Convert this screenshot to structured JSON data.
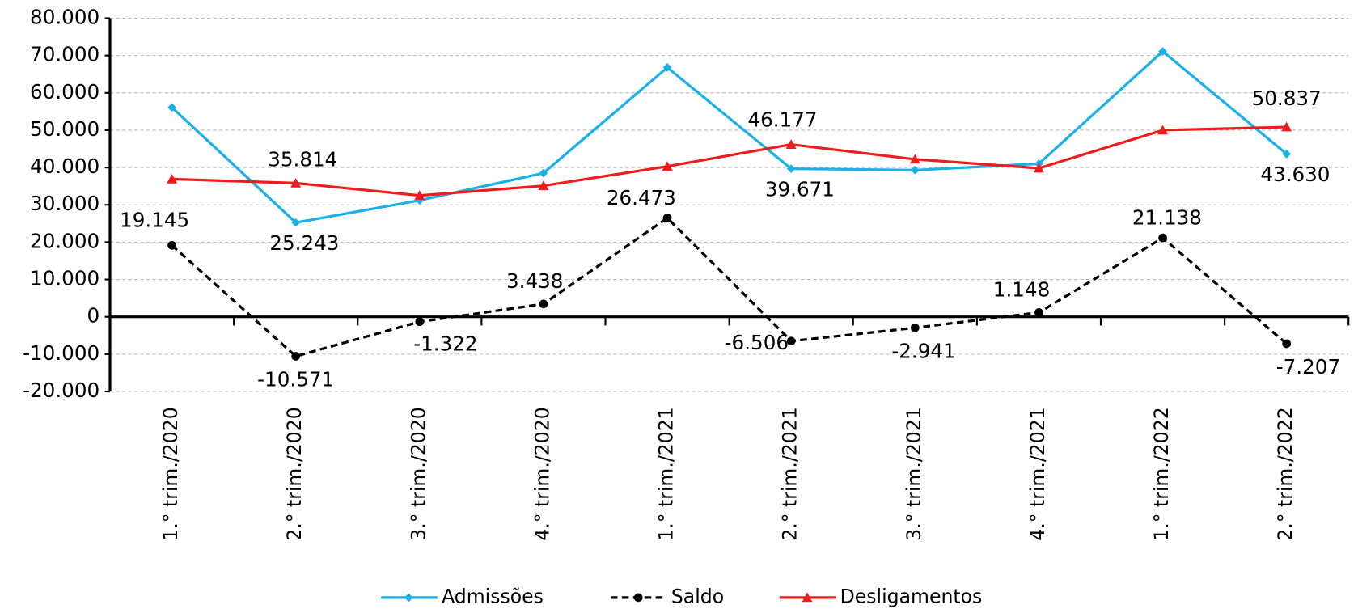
{
  "chart_data": {
    "type": "line",
    "categories": [
      "1.° trim./2020",
      "2.° trim./2020",
      "3.° trim./2020",
      "4.° trim./2020",
      "1.° trim./2021",
      "2.° trim./2021",
      "3.° trim./2021",
      "4.° trim./2021",
      "1.° trim./2022",
      "2.° trim./2022"
    ],
    "series": [
      {
        "name": "Admissões",
        "color": "#1ab0e8",
        "marker": "diamond",
        "dashed": false,
        "values": [
          56100,
          25243,
          31200,
          38500,
          66800,
          39671,
          39300,
          41000,
          71100,
          43630
        ],
        "value_labels": [
          null,
          "25.243",
          null,
          null,
          null,
          "39.671",
          null,
          null,
          null,
          "43.630"
        ]
      },
      {
        "name": "Saldo",
        "color": "#000000",
        "marker": "circle",
        "dashed": true,
        "values": [
          19145,
          -10571,
          -1322,
          3438,
          26473,
          -6506,
          -2941,
          1148,
          21138,
          -7207
        ],
        "value_labels": [
          "19.145",
          "-10.571",
          "-1.322",
          "3.438",
          "26.473",
          "-6.506",
          "-2.941",
          "1.148",
          "21.138",
          "-7.207"
        ]
      },
      {
        "name": "Desligamentos",
        "color": "#ee1c1c",
        "marker": "triangle",
        "dashed": false,
        "values": [
          36900,
          35814,
          32500,
          35100,
          40300,
          46177,
          42200,
          39800,
          50000,
          50837
        ],
        "value_labels": [
          null,
          "35.814",
          null,
          null,
          null,
          "46.177",
          null,
          null,
          null,
          "50.837"
        ]
      }
    ],
    "ylim": [
      -20000,
      80000
    ],
    "yticks": [
      {
        "value": -20000,
        "label": "-20.000"
      },
      {
        "value": -10000,
        "label": "-10.000"
      },
      0,
      {
        "value": 10000,
        "label": "10.000"
      },
      {
        "value": 20000,
        "label": "20.000"
      },
      {
        "value": 30000,
        "label": "30.000"
      },
      {
        "value": 40000,
        "label": "40.000"
      },
      {
        "value": 50000,
        "label": "50.000"
      },
      {
        "value": 60000,
        "label": "60.000"
      },
      {
        "value": 70000,
        "label": "70.000"
      },
      {
        "value": 80000,
        "label": "80.000"
      }
    ],
    "grid": true,
    "legend": "bottom"
  }
}
